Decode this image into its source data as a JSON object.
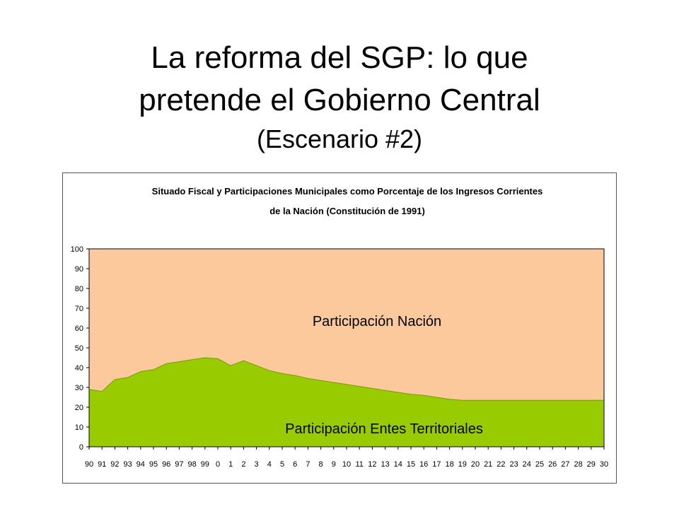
{
  "slide": {
    "title_line1": "La reforma del SGP: lo que",
    "title_line2": "pretende el Gobierno Central",
    "subtitle": "(Escenario #2)"
  },
  "chart_data": {
    "type": "area",
    "stacked": true,
    "title_line1": "Situado Fiscal y Participaciones Municipales como Porcentaje de los Ingresos Corrientes",
    "title_line2": "de la Nación (Constitución de 1991)",
    "xlabel": "",
    "ylabel": "",
    "ylim": [
      0,
      100
    ],
    "yticks": [
      0,
      10,
      20,
      30,
      40,
      50,
      60,
      70,
      80,
      90,
      100
    ],
    "grid": false,
    "legend": "none",
    "categories": [
      "90",
      "91",
      "92",
      "93",
      "94",
      "95",
      "96",
      "97",
      "98",
      "99",
      "0",
      "1",
      "2",
      "3",
      "4",
      "5",
      "6",
      "7",
      "8",
      "9",
      "10",
      "11",
      "12",
      "13",
      "14",
      "15",
      "16",
      "17",
      "18",
      "19",
      "20",
      "21",
      "22",
      "23",
      "24",
      "25",
      "26",
      "27",
      "28",
      "29",
      "30"
    ],
    "series": [
      {
        "name": "Participación Entes Territoriales",
        "color": "#99cc00",
        "values": [
          29,
          28,
          34,
          35,
          38,
          39,
          42,
          43,
          44,
          45,
          44.5,
          41,
          43.5,
          41,
          38.5,
          37,
          36,
          34.5,
          33.5,
          32.5,
          31.5,
          30.5,
          29.5,
          28.5,
          27.5,
          26.5,
          26,
          25,
          24,
          23.5,
          23.5,
          23.5,
          23.5,
          23.5,
          23.5,
          23.5,
          23.5,
          23.5,
          23.5,
          23.5,
          23.5
        ]
      },
      {
        "name": "Participación Nación",
        "color": "#fcc99c",
        "values": [
          71,
          72,
          66,
          65,
          62,
          61,
          58,
          57,
          56,
          55,
          55.5,
          59,
          56.5,
          59,
          61.5,
          63,
          64,
          65.5,
          66.5,
          67.5,
          68.5,
          69.5,
          70.5,
          71.5,
          72.5,
          73.5,
          74,
          75,
          76,
          76.5,
          76.5,
          76.5,
          76.5,
          76.5,
          76.5,
          76.5,
          76.5,
          76.5,
          76.5,
          76.5,
          76.5
        ]
      }
    ]
  }
}
